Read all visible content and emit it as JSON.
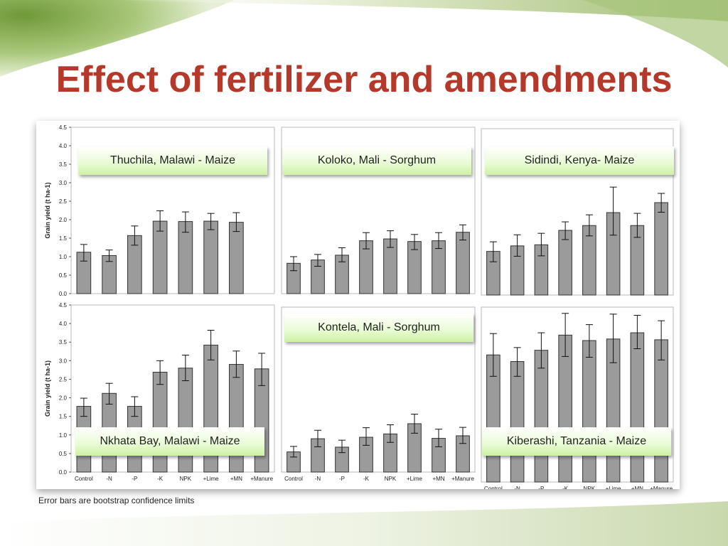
{
  "title": "Effect of fertilizer and amendments",
  "footnote": "Error bars are bootstrap confidence limits",
  "colors": {
    "title": "#b5392b",
    "bar": "#9b9b9b",
    "bar_stroke": "#333333",
    "label_box": "#d9f7b8"
  },
  "chart_data": [
    {
      "type": "bar",
      "panel": "top-left",
      "title": "Thuchila, Malawi - Maize",
      "categories": [
        "Control",
        "-N",
        "-P",
        "-K",
        "NPK",
        "+Lime",
        "+MN",
        "+Manure"
      ],
      "values": [
        1.12,
        1.03,
        1.57,
        1.96,
        1.95,
        1.96,
        1.93,
        null
      ],
      "error_low": [
        0.88,
        0.87,
        1.31,
        1.69,
        1.66,
        1.73,
        1.68,
        null
      ],
      "error_high": [
        1.33,
        1.18,
        1.83,
        2.24,
        2.21,
        2.17,
        2.19,
        null
      ],
      "ylabel": "Grain yield (t ha-1)",
      "ylim": [
        0,
        4.5
      ],
      "grid": false
    },
    {
      "type": "bar",
      "panel": "top-middle",
      "title": "Koloko, Mali - Sorghum",
      "categories": [
        "Control",
        "-N",
        "-P",
        "-K",
        "NPK",
        "+Lime",
        "+MN",
        "+Manure"
      ],
      "values": [
        0.82,
        0.91,
        1.04,
        1.43,
        1.48,
        1.41,
        1.43,
        1.66
      ],
      "error_low": [
        0.62,
        0.74,
        0.86,
        1.21,
        1.25,
        1.19,
        1.22,
        1.45
      ],
      "error_high": [
        1.0,
        1.06,
        1.24,
        1.65,
        1.7,
        1.6,
        1.65,
        1.86
      ],
      "ylim": [
        0,
        4.5
      ],
      "grid": false
    },
    {
      "type": "bar",
      "panel": "top-right",
      "title": "Sidindi, Kenya- Maize",
      "categories": [
        "Control",
        "-N",
        "-P",
        "-K",
        "NPK",
        "+Lime",
        "+MN",
        "+Manure"
      ],
      "values": [
        1.18,
        1.33,
        1.36,
        1.75,
        1.88,
        2.23,
        1.88,
        2.5
      ],
      "error_low": [
        0.9,
        1.05,
        1.06,
        1.5,
        1.6,
        1.62,
        1.56,
        2.24
      ],
      "error_high": [
        1.44,
        1.63,
        1.67,
        1.98,
        2.17,
        2.92,
        2.21,
        2.75
      ],
      "ylim": [
        0,
        4.5
      ],
      "grid": false
    },
    {
      "type": "bar",
      "panel": "bottom-left",
      "title": "Nkhata Bay, Malawi - Maize",
      "categories": [
        "Control",
        "-N",
        "-P",
        "-K",
        "NPK",
        "+Lime",
        "+MN",
        "+Manure"
      ],
      "values": [
        1.77,
        2.12,
        1.77,
        2.69,
        2.8,
        3.42,
        2.9,
        2.78
      ],
      "error_low": [
        1.5,
        1.83,
        1.5,
        2.36,
        2.46,
        3.02,
        2.55,
        2.33
      ],
      "error_high": [
        1.99,
        2.39,
        2.03,
        3.0,
        3.15,
        3.82,
        3.26,
        3.2
      ],
      "ylabel": "Grain yield (t ha-1)",
      "ylim": [
        0,
        4.5
      ],
      "grid": false
    },
    {
      "type": "bar",
      "panel": "bottom-middle",
      "title": "Kontela, Mali - Sorghum",
      "categories": [
        "Control",
        "-N",
        "-P",
        "-K",
        "NPK",
        "+Lime",
        "+MN",
        "+Manure"
      ],
      "values": [
        0.55,
        0.91,
        0.68,
        0.95,
        1.04,
        1.32,
        0.92,
        0.99
      ],
      "error_low": [
        0.41,
        0.69,
        0.53,
        0.73,
        0.81,
        1.06,
        0.69,
        0.78
      ],
      "error_high": [
        0.7,
        1.14,
        0.87,
        1.21,
        1.29,
        1.58,
        1.17,
        1.22
      ],
      "ylim": [
        0,
        4.5
      ],
      "grid": false
    },
    {
      "type": "bar",
      "panel": "bottom-right",
      "title": "Kiberashi, Tanzania - Maize",
      "categories": [
        "Control",
        "-N",
        "-P",
        "-K",
        "NPK",
        "+Lime",
        "+MN",
        "+Manure"
      ],
      "values": [
        3.27,
        3.1,
        3.39,
        3.78,
        3.64,
        3.68,
        3.84,
        3.66
      ],
      "error_low": [
        2.72,
        2.72,
        2.93,
        3.23,
        3.21,
        3.07,
        3.43,
        3.14
      ],
      "error_high": [
        3.82,
        3.46,
        3.84,
        4.34,
        4.05,
        4.32,
        4.29,
        4.15
      ],
      "ylim": [
        0,
        4.5
      ],
      "grid": false
    }
  ],
  "y_ticks": [
    "0.0",
    "0.5",
    "1.0",
    "1.5",
    "2.0",
    "2.5",
    "3.0",
    "3.5",
    "4.0",
    "4.5"
  ]
}
